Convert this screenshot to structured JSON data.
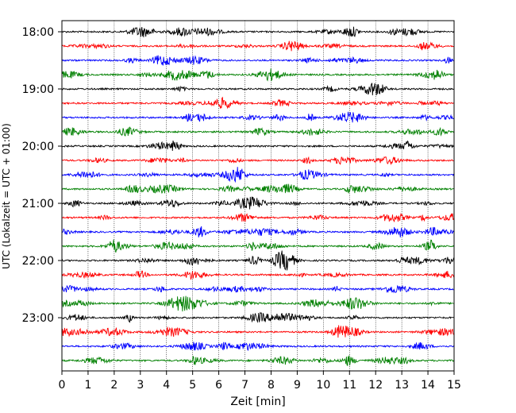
{
  "chart_data": {
    "type": "line",
    "title": "",
    "xlabel": "Zeit  [min]",
    "ylabel": "UTC (Lokalzeit = UTC + 01:00)",
    "xlim": [
      0,
      15
    ],
    "x_ticks": [
      "0",
      "1",
      "2",
      "3",
      "4",
      "5",
      "6",
      "7",
      "8",
      "9",
      "10",
      "11",
      "12",
      "13",
      "14",
      "15"
    ],
    "y_tick_labels": [
      "18:00",
      "19:00",
      "20:00",
      "21:00",
      "22:00",
      "23:00"
    ],
    "traces_per_hour": 4,
    "trace_count": 24,
    "trace_start": "18:00",
    "trace_interval_min": 15,
    "colors": [
      "#000000",
      "#ff0000",
      "#0000ff",
      "#008000"
    ],
    "grid": {
      "x": true,
      "style": "dotted"
    }
  }
}
